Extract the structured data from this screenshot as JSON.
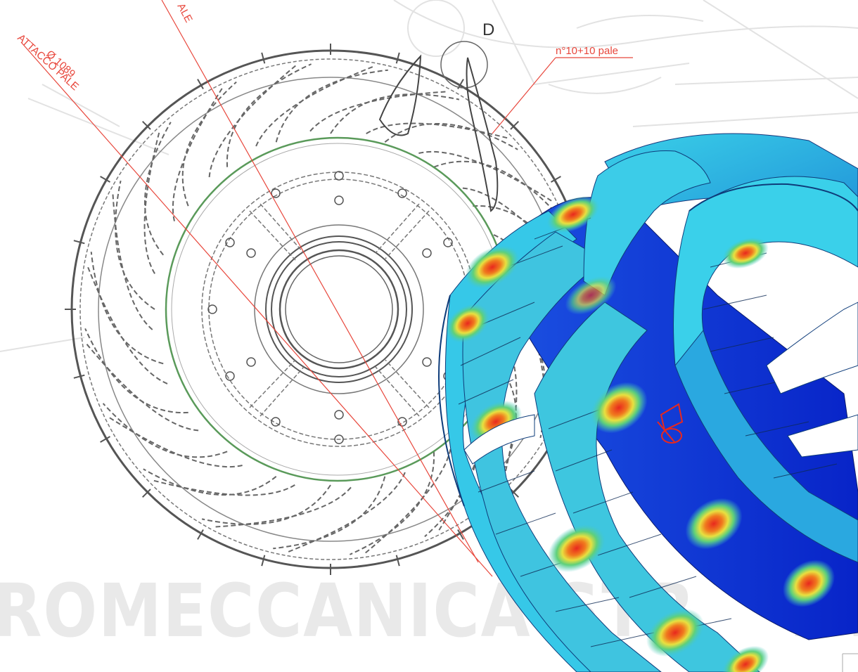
{
  "drawing": {
    "detail_label": "D",
    "attach_diameter": "Ø 1089",
    "attach_label": "ATTACCO PALE",
    "top_label_fragment": "ALE",
    "blade_count_note": "n°10+10 pale"
  },
  "watermark": {
    "text": "ROMECCANICA  STR",
    "tail": "...."
  },
  "colors": {
    "dimension_red": "#e8473c",
    "drawing_line": "#555555",
    "hub_green": "#5a9a5a",
    "fea_low": "#0b2fd6",
    "fea_mid": "#36c8e8",
    "fea_high": "#e8281e"
  }
}
